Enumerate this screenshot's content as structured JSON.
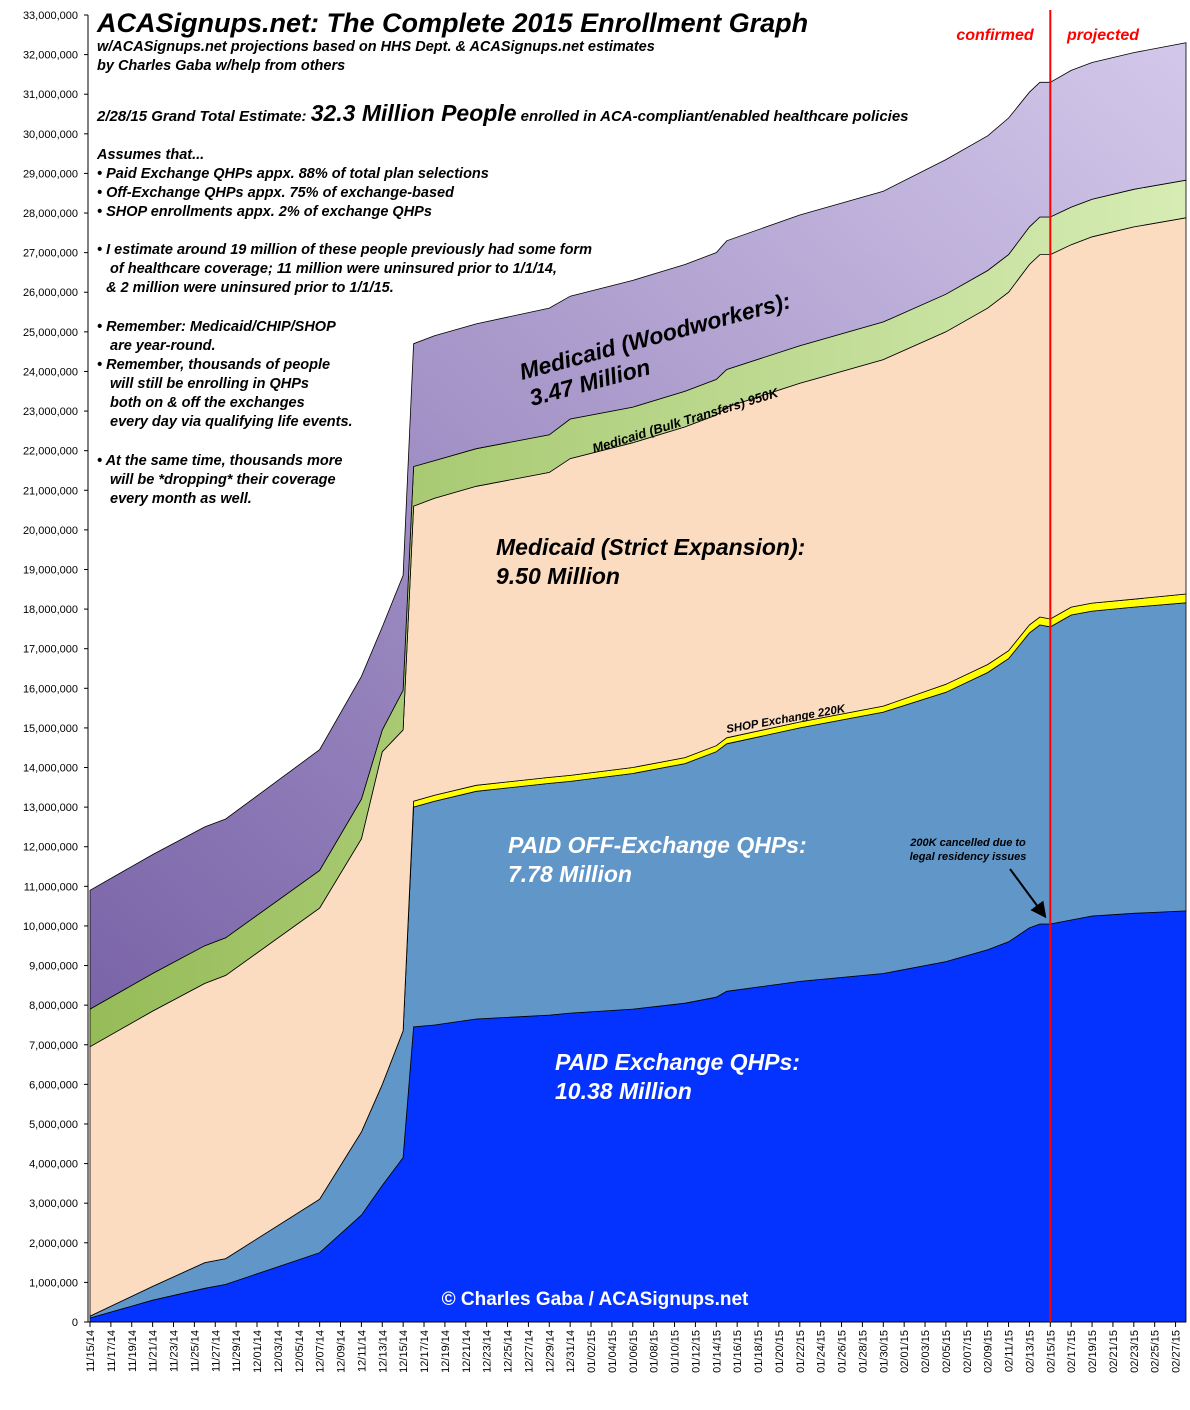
{
  "chart_data": {
    "type": "area",
    "stacked": true,
    "title": "ACASignups.net: The Complete 2015 Enrollment Graph",
    "subtitle_lines": [
      "w/ACASignups.net projections based on HHS Dept. & ACASignups.net estimates",
      "by Charles Gaba w/help from others"
    ],
    "grand_total": {
      "prefix": "2/28/15 Grand Total Estimate:",
      "value": "32.3 Million People",
      "suffix": "enrolled in ACA-compliant/enabled healthcare policies"
    },
    "notes": [
      "Assumes that...",
      "• Paid Exchange QHPs appx. 88% of total plan selections",
      "• Off-Exchange QHPs appx. 75% of exchange-based",
      "• SHOP enrollments appx. 2% of exchange QHPs",
      "• I estimate around 19 million of these people previously had some form",
      "of healthcare coverage; 11 million were uninsured prior to 1/1/14,",
      "& 2 million were uninsured prior to 1/1/15.",
      "• Remember: Medicaid/CHIP/SHOP",
      "are year-round.",
      "• Remember, thousands of people",
      "will still be enrolling in QHPs",
      "both on & off the exchanges",
      "every day via qualifying life events.",
      "• At the same time, thousands more",
      "will be *dropping* their coverage",
      "every month as well."
    ],
    "x": [
      "11/15/14",
      "11/21/14",
      "11/26/14",
      "11/28/14",
      "12/07/14",
      "12/11/14",
      "12/13/14",
      "12/15/14",
      "12/16/14",
      "12/18/14",
      "12/22/14",
      "12/29/14",
      "12/31/14",
      "01/06/15",
      "01/11/15",
      "01/14/15",
      "01/15/15",
      "01/22/15",
      "01/30/15",
      "02/05/15",
      "02/09/15",
      "02/11/15",
      "02/13/15",
      "02/14/15",
      "02/15/15",
      "02/17/15",
      "02/19/15",
      "02/23/15",
      "02/28/15"
    ],
    "series": [
      {
        "key": "paid_exchange",
        "color": "#0433ff",
        "values": [
          100000,
          550000,
          850000,
          950000,
          1750000,
          2700000,
          3450000,
          4150000,
          7450000,
          7500000,
          7650000,
          7750000,
          7800000,
          7900000,
          8050000,
          8200000,
          8350000,
          8600000,
          8800000,
          9100000,
          9400000,
          9600000,
          9950000,
          10050000,
          10050000,
          10150000,
          10250000,
          10320000,
          10380000
        ]
      },
      {
        "key": "paid_off_exchange",
        "color": "#6196c8",
        "values": [
          50000,
          350000,
          650000,
          650000,
          1350000,
          2100000,
          2550000,
          3200000,
          5550000,
          5650000,
          5750000,
          5850000,
          5850000,
          5950000,
          6050000,
          6200000,
          6250000,
          6400000,
          6600000,
          6800000,
          7000000,
          7150000,
          7450000,
          7550000,
          7500000,
          7700000,
          7700000,
          7730000,
          7780000
        ]
      },
      {
        "key": "shop_exchange",
        "color": "#ffff00",
        "values": [
          0,
          0,
          0,
          0,
          0,
          0,
          0,
          0,
          150000,
          150000,
          150000,
          150000,
          150000,
          150000,
          150000,
          150000,
          150000,
          150000,
          150000,
          200000,
          200000,
          200000,
          200000,
          200000,
          200000,
          200000,
          200000,
          200000,
          220000
        ]
      },
      {
        "key": "medicaid_strict",
        "color": "#fcdcc0",
        "values": [
          6800000,
          6950000,
          7050000,
          7150000,
          7350000,
          7400000,
          8400000,
          7600000,
          7450000,
          7500000,
          7550000,
          7700000,
          8000000,
          8200000,
          8350000,
          8350000,
          8350000,
          8550000,
          8750000,
          8900000,
          9000000,
          9050000,
          9100000,
          9150000,
          9200000,
          9150000,
          9250000,
          9400000,
          9500000
        ]
      },
      {
        "key": "medicaid_bulk",
        "color": "#a8cc70",
        "values": [
          950000,
          950000,
          950000,
          950000,
          950000,
          1000000,
          550000,
          1000000,
          1000000,
          950000,
          950000,
          950000,
          1000000,
          900000,
          900000,
          900000,
          950000,
          950000,
          950000,
          950000,
          950000,
          950000,
          950000,
          950000,
          950000,
          950000,
          950000,
          950000,
          950000
        ]
      },
      {
        "key": "medicaid_woodworkers",
        "color": "#9c8cc8",
        "values": [
          3000000,
          3000000,
          3000000,
          3000000,
          3050000,
          3100000,
          2600000,
          2900000,
          3100000,
          3150000,
          3150000,
          3200000,
          3100000,
          3200000,
          3200000,
          3200000,
          3250000,
          3300000,
          3300000,
          3400000,
          3400000,
          3450000,
          3400000,
          3400000,
          3400000,
          3450000,
          3450000,
          3450000,
          3470000
        ]
      }
    ],
    "series_labels": {
      "woodworkers": [
        "Medicaid (Woodworkers):",
        "3.47 Million"
      ],
      "bulk": "Medicaid (Bulk Transfers) 950K",
      "strict": [
        "Medicaid (Strict Expansion):",
        "9.50 Million"
      ],
      "shop": "SHOP Exchange 220K",
      "off_exchange": [
        "PAID OFF-Exchange QHPs:",
        "7.78 Million"
      ],
      "exchange": [
        "PAID Exchange QHPs:",
        "10.38 Million"
      ]
    },
    "annotations": {
      "cancelled": [
        "200K cancelled due to",
        "legal residency issues"
      ],
      "divider_date": "02/15/15",
      "divider_color": "#ff0000",
      "confirmed": "confirmed",
      "projected": "projected",
      "copyright": "© Charles Gaba / ACASignups.net"
    },
    "ylim": [
      0,
      33000000
    ],
    "yticks": [
      0,
      1000000,
      2000000,
      3000000,
      4000000,
      5000000,
      6000000,
      7000000,
      8000000,
      9000000,
      10000000,
      11000000,
      12000000,
      13000000,
      14000000,
      15000000,
      16000000,
      17000000,
      18000000,
      19000000,
      20000000,
      21000000,
      22000000,
      23000000,
      24000000,
      25000000,
      26000000,
      27000000,
      28000000,
      29000000,
      30000000,
      31000000,
      32000000,
      33000000
    ],
    "xlim": [
      "11/15/14",
      "02/28/15"
    ],
    "xtick_labels": [
      "11/15/14",
      "11/17/14",
      "11/19/14",
      "11/21/14",
      "11/23/14",
      "11/25/14",
      "11/27/14",
      "11/29/14",
      "12/01/14",
      "12/03/14",
      "12/05/14",
      "12/07/14",
      "12/09/14",
      "12/11/14",
      "12/13/14",
      "12/15/14",
      "12/17/14",
      "12/19/14",
      "12/21/14",
      "12/23/14",
      "12/25/14",
      "12/27/14",
      "12/29/14",
      "12/31/14",
      "01/02/15",
      "01/04/15",
      "01/06/15",
      "01/08/15",
      "01/10/15",
      "01/12/15",
      "01/14/15",
      "01/16/15",
      "01/18/15",
      "01/20/15",
      "01/22/15",
      "01/24/15",
      "01/26/15",
      "01/28/15",
      "01/30/15",
      "02/01/15",
      "02/03/15",
      "02/05/15",
      "02/07/15",
      "02/09/15",
      "02/11/15",
      "02/13/15",
      "02/15/15",
      "02/17/15",
      "02/19/15",
      "02/21/15",
      "02/23/15",
      "02/25/15",
      "02/27/15"
    ],
    "grid": false
  }
}
